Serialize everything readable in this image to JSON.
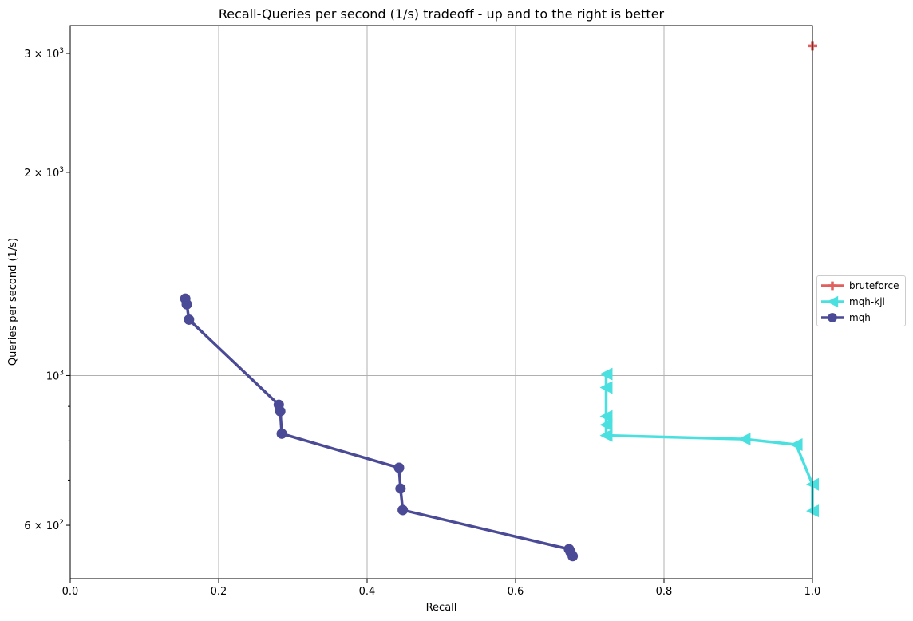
{
  "chart_data": {
    "type": "line",
    "title": "Recall-Queries per second (1/s) tradeoff - up and to the right is better",
    "xlabel": "Recall",
    "ylabel": "Queries per second (1/s)",
    "xlim": [
      0.0,
      1.0
    ],
    "ylim": [
      500,
      3300
    ],
    "yscale": "log",
    "grid": true,
    "legend_position": "right",
    "x_ticks": [
      "0.0",
      "0.2",
      "0.4",
      "0.6",
      "0.8",
      "1.0"
    ],
    "y_ticks": [
      {
        "value": 600,
        "base": "6 × 10",
        "exp": "2"
      },
      {
        "value": 1000,
        "base": "10",
        "exp": "3"
      },
      {
        "value": 2000,
        "base": "2 × 10",
        "exp": "3"
      },
      {
        "value": 3000,
        "base": "3 × 10",
        "exp": "3"
      }
    ],
    "series": [
      {
        "name": "bruteforce",
        "color": "#e05f5f",
        "marker": "plus",
        "points": [
          [
            1.0,
            3080
          ]
        ]
      },
      {
        "name": "mqh-kjl",
        "color": "#4ae0e0",
        "marker": "triangle-left",
        "points": [
          [
            1.0,
            630
          ],
          [
            1.0,
            690
          ],
          [
            0.978,
            790
          ],
          [
            0.908,
            805
          ],
          [
            0.722,
            815
          ],
          [
            0.722,
            845
          ],
          [
            0.722,
            870
          ],
          [
            0.722,
            960
          ],
          [
            0.722,
            1005
          ]
        ]
      },
      {
        "name": "mqh",
        "color": "#4a4a96",
        "marker": "circle",
        "points": [
          [
            0.155,
            1300
          ],
          [
            0.157,
            1275
          ],
          [
            0.16,
            1210
          ],
          [
            0.281,
            905
          ],
          [
            0.283,
            885
          ],
          [
            0.285,
            820
          ],
          [
            0.443,
            730
          ],
          [
            0.445,
            680
          ],
          [
            0.448,
            632
          ],
          [
            0.672,
            553
          ],
          [
            0.674,
            548
          ],
          [
            0.677,
            540
          ]
        ]
      }
    ]
  }
}
